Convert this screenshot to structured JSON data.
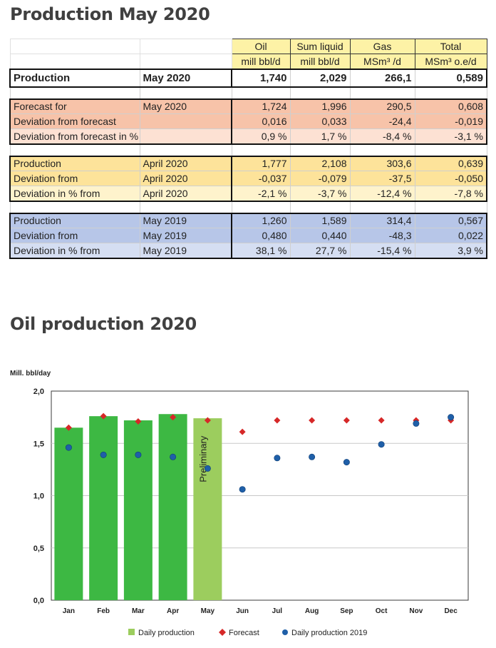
{
  "title": "Production May 2020",
  "table": {
    "headers": [
      {
        "name": "Oil",
        "unit": "mill bbl/d"
      },
      {
        "name": "Sum liquid",
        "unit": "mill bbl/d"
      },
      {
        "name": "Gas",
        "unit": "MSm³ /d"
      },
      {
        "name": "Total",
        "unit": "MSm³ o.e/d"
      }
    ],
    "production": {
      "label": "Production",
      "period": "May 2020",
      "values": [
        "1,740",
        "2,029",
        "266,1",
        "0,589"
      ]
    },
    "forecast": [
      {
        "label": "Forecast for",
        "period": "May 2020",
        "values": [
          "1,724",
          "1,996",
          "290,5",
          "0,608"
        ]
      },
      {
        "label": "Deviation from forecast",
        "period": "",
        "values": [
          "0,016",
          "0,033",
          "-24,4",
          "-0,019"
        ]
      },
      {
        "label": "Deviation from forecast in %",
        "period": "",
        "values": [
          "0,9 %",
          "1,7 %",
          "-8,4 %",
          "-3,1 %"
        ]
      }
    ],
    "previous_month": [
      {
        "label": "Production",
        "period": "April 2020",
        "values": [
          "1,777",
          "2,108",
          "303,6",
          "0,639"
        ]
      },
      {
        "label": "Deviation from",
        "period": "April 2020",
        "values": [
          "-0,037",
          "-0,079",
          "-37,5",
          "-0,050"
        ]
      },
      {
        "label": "Deviation  in % from",
        "period": "April 2020",
        "values": [
          "-2,1 %",
          "-3,7 %",
          "-12,4 %",
          "-7,8 %"
        ]
      }
    ],
    "previous_year": [
      {
        "label": "Production",
        "period": "May 2019",
        "values": [
          "1,260",
          "1,589",
          "314,4",
          "0,567"
        ]
      },
      {
        "label": "Deviation from",
        "period": "May 2019",
        "values": [
          "0,480",
          "0,440",
          "-48,3",
          "0,022"
        ]
      },
      {
        "label": "Deviation  in % from",
        "period": "May 2019",
        "values": [
          "38,1 %",
          "27,7 %",
          "-15,4 %",
          "3,9 %"
        ]
      }
    ]
  },
  "chart_title": "Oil production 2020",
  "chart_data": {
    "type": "bar",
    "ylabel": "Mill. bbl/day",
    "ylim": [
      0,
      2.0
    ],
    "yticks": [
      "0,0",
      "0,5",
      "1,0",
      "1,5",
      "2,0"
    ],
    "categories": [
      "Jan",
      "Feb",
      "Mar",
      "Apr",
      "May",
      "Jun",
      "Jul",
      "Aug",
      "Sep",
      "Oct",
      "Nov",
      "Dec"
    ],
    "grid": true,
    "legend_position": "bottom",
    "series": [
      {
        "name": "Daily production",
        "kind": "bar",
        "values": [
          1.65,
          1.76,
          1.72,
          1.78,
          1.74,
          null,
          null,
          null,
          null,
          null,
          null,
          null
        ],
        "color": "#3db843",
        "preliminary_color": "#9ccd5e"
      },
      {
        "name": "Forecast",
        "kind": "marker-diamond",
        "values": [
          1.65,
          1.76,
          1.71,
          1.75,
          1.72,
          1.61,
          1.72,
          1.72,
          1.72,
          1.72,
          1.72,
          1.72
        ],
        "color": "#d62828"
      },
      {
        "name": "Daily production 2019",
        "kind": "marker-circle",
        "values": [
          1.46,
          1.39,
          1.39,
          1.37,
          1.26,
          1.06,
          1.36,
          1.37,
          1.32,
          1.49,
          1.69,
          1.75
        ],
        "color": "#1f5fa8"
      }
    ],
    "annotations": [
      {
        "category": "May",
        "text": "Preliminary"
      }
    ]
  }
}
